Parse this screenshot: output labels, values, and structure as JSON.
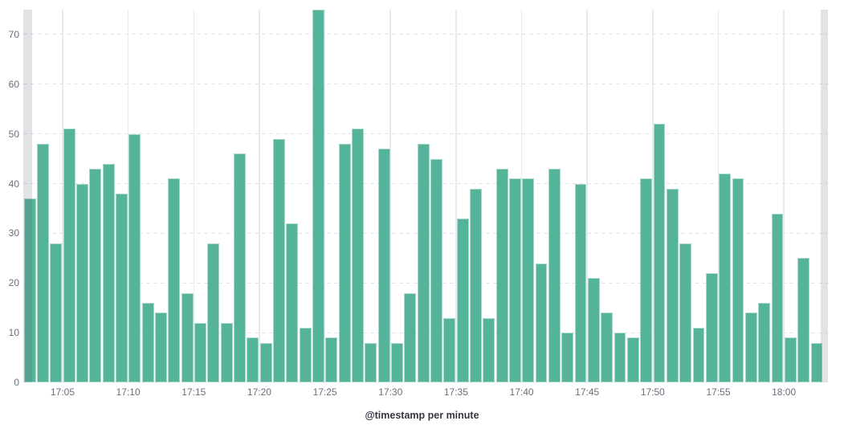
{
  "chart_data": {
    "type": "bar",
    "title": "",
    "xlabel": "@timestamp per minute",
    "ylabel": "",
    "x": [
      "17:02",
      "17:03",
      "17:04",
      "17:05",
      "17:06",
      "17:07",
      "17:08",
      "17:09",
      "17:10",
      "17:11",
      "17:12",
      "17:13",
      "17:14",
      "17:15",
      "17:16",
      "17:17",
      "17:18",
      "17:19",
      "17:20",
      "17:21",
      "17:22",
      "17:23",
      "17:24",
      "17:25",
      "17:26",
      "17:27",
      "17:28",
      "17:29",
      "17:30",
      "17:31",
      "17:32",
      "17:33",
      "17:34",
      "17:35",
      "17:36",
      "17:37",
      "17:38",
      "17:39",
      "17:40",
      "17:41",
      "17:42",
      "17:43",
      "17:44",
      "17:45",
      "17:46",
      "17:47",
      "17:48",
      "17:49",
      "17:50",
      "17:51",
      "17:52",
      "17:53",
      "17:54",
      "17:55",
      "17:56",
      "17:57",
      "17:58",
      "17:59",
      "18:00",
      "18:01",
      "18:02"
    ],
    "values": [
      37,
      48,
      28,
      51,
      40,
      43,
      44,
      38,
      50,
      16,
      14,
      41,
      18,
      12,
      28,
      12,
      46,
      9,
      8,
      49,
      32,
      11,
      75,
      9,
      48,
      51,
      8,
      47,
      8,
      18,
      48,
      45,
      13,
      33,
      39,
      13,
      43,
      41,
      41,
      24,
      43,
      10,
      40,
      21,
      14,
      10,
      9,
      41,
      52,
      39,
      28,
      11,
      22,
      42,
      41,
      14,
      16,
      34,
      9,
      25,
      8
    ],
    "ylim": [
      0,
      75
    ],
    "y_ticks": [
      0,
      10,
      20,
      30,
      40,
      50,
      60,
      70
    ],
    "x_tick_labels": [
      "17:05",
      "17:10",
      "17:15",
      "17:20",
      "17:25",
      "17:30",
      "17:35",
      "17:40",
      "17:45",
      "17:50",
      "17:55",
      "18:00"
    ],
    "grid": {
      "horizontal": "dashed",
      "vertical": "solid"
    },
    "legend_position": "none",
    "partial_bucket_endzones": "left-and-right"
  },
  "colors": {
    "bar": "#54B399",
    "horizontal_grid": "#dfe3ea",
    "vertical_grid": "#e8eaf2",
    "tick_text": "#69707D",
    "axis_title_text": "#343741",
    "endzone_overlay": "rgba(92,100,120,0.18)",
    "background": "#FFFFFF"
  }
}
